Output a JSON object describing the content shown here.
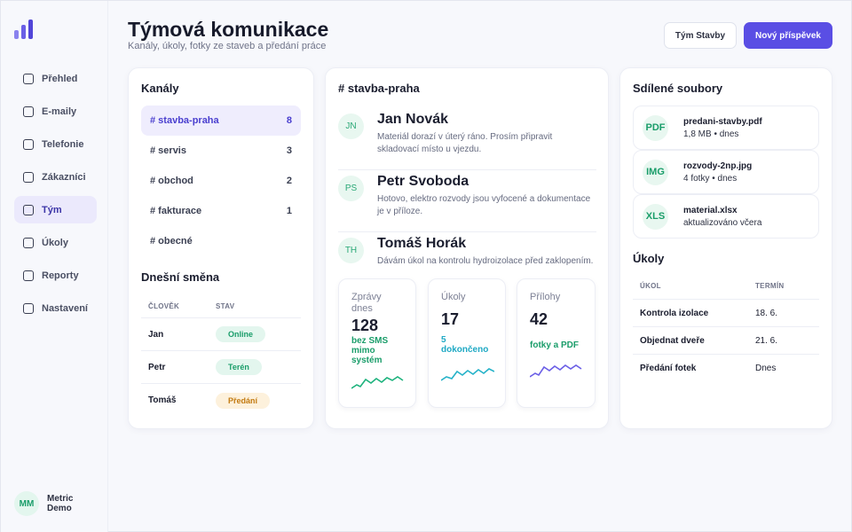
{
  "sidebar": {
    "items": [
      {
        "label": "Přehled"
      },
      {
        "label": "E-maily"
      },
      {
        "label": "Telefonie"
      },
      {
        "label": "Zákazníci"
      },
      {
        "label": "Tým"
      },
      {
        "label": "Úkoly"
      },
      {
        "label": "Reporty"
      },
      {
        "label": "Nastavení"
      }
    ],
    "active_item": "Tým",
    "user": {
      "initials": "MM",
      "name": "Metric Demo"
    }
  },
  "header": {
    "title": "Týmová komunikace",
    "subtitle": "Kanály, úkoly, fotky ze staveb a předání práce",
    "team_button": "Tým Stavby",
    "new_post_button": "Nový příspěvek"
  },
  "channels": {
    "title": "Kanály",
    "items": [
      {
        "name": "# stavba-praha",
        "count": "8"
      },
      {
        "name": "# servis",
        "count": "3"
      },
      {
        "name": "# obchod",
        "count": "2"
      },
      {
        "name": "# fakturace",
        "count": "1"
      },
      {
        "name": "# obecné",
        "count": ""
      }
    ]
  },
  "shift": {
    "title": "Dnešní směna",
    "col_person": "ČLOVĚK",
    "col_status": "STAV",
    "rows": [
      {
        "person": "Jan",
        "status": "Online"
      },
      {
        "person": "Petr",
        "status": "Terén"
      },
      {
        "person": "Tomáš",
        "status": "Předání"
      }
    ]
  },
  "feed": {
    "title": "# stavba-praha",
    "messages": [
      {
        "initials": "JN",
        "name": "Jan Novák",
        "text": "Materiál dorazí v úterý ráno. Prosím připravit skladovací místo u vjezdu."
      },
      {
        "initials": "PS",
        "name": "Petr Svoboda",
        "text": "Hotovo, elektro rozvody jsou vyfocené a dokumentace je v příloze."
      },
      {
        "initials": "TH",
        "name": "Tomáš Horák",
        "text": "Dávám úkol na kontrolu hydroizolace před zaklopením."
      }
    ],
    "stats": [
      {
        "label": "Zprávy dnes",
        "value": "128",
        "note": "bez SMS mimo systém"
      },
      {
        "label": "Úkoly",
        "value": "17",
        "note": "5 dokončeno"
      },
      {
        "label": "Přílohy",
        "value": "42",
        "note": "fotky a PDF"
      }
    ]
  },
  "files": {
    "title": "Sdílené soubory",
    "items": [
      {
        "type": "PDF",
        "name": "predani-stavby.pdf",
        "meta": "1,8 MB • dnes"
      },
      {
        "type": "IMG",
        "name": "rozvody-2np.jpg",
        "meta": "4 fotky • dnes"
      },
      {
        "type": "XLS",
        "name": "material.xlsx",
        "meta": "aktualizováno včera"
      }
    ]
  },
  "tasks": {
    "title": "Úkoly",
    "col_task": "ÚKOL",
    "col_due": "TERMÍN",
    "rows": [
      {
        "task": "Kontrola izolace",
        "due": "18. 6."
      },
      {
        "task": "Objednat dveře",
        "due": "21. 6."
      },
      {
        "task": "Předání fotek",
        "due": "Dnes"
      }
    ]
  },
  "colors": {
    "accent": "#5a4ee4",
    "green": "#1a9d6a",
    "teal": "#1fa9c4",
    "purple": "#6b5fe6",
    "online_bg": "#e3f6ee",
    "teren_bg": "#e3f6ee",
    "predani_bg": "#fdf1dc",
    "predani_text": "#c27a10"
  }
}
